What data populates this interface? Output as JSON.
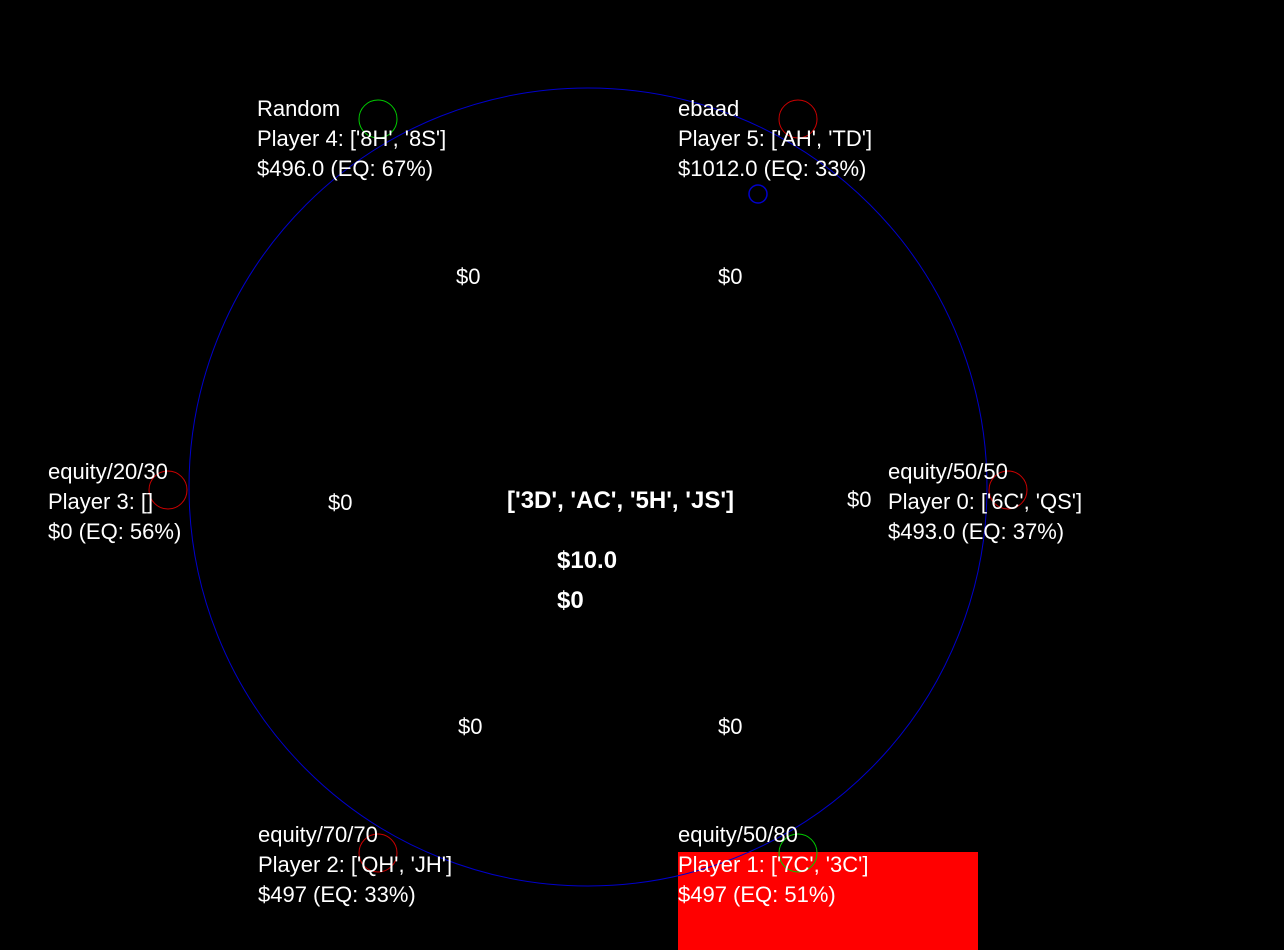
{
  "colors": {
    "background": "#000000",
    "table_outline": "#0000cc",
    "text": "#ffffff",
    "active_highlight": "#ff0000",
    "marker_green": "#00cc00",
    "marker_red": "#cc0000",
    "marker_blue": "#0000cc"
  },
  "board": {
    "cards_text": "['3D', 'AC', '5H', 'JS']"
  },
  "pot": {
    "main": "$10.0",
    "side": "$0"
  },
  "players": [
    {
      "seat": "player-4",
      "strategy": "Random",
      "cards_line": "Player 4: ['8H', '8S']",
      "stack_line": "$496.0 (EQ: 67%)",
      "bet": "$0",
      "marker_icon": "green-circle-icon",
      "active": false
    },
    {
      "seat": "player-5",
      "strategy": "ebaad",
      "cards_line": "Player 5: ['AH', 'TD']",
      "stack_line": "$1012.0 (EQ: 33%)",
      "bet": "$0",
      "marker_icon": "red-circle-icon",
      "active": false
    },
    {
      "seat": "player-3",
      "strategy": "equity/20/30",
      "cards_line": "Player 3: []",
      "stack_line": "$0 (EQ: 56%)",
      "bet": "$0",
      "marker_icon": "red-circle-icon",
      "active": false
    },
    {
      "seat": "player-0",
      "strategy": "equity/50/50",
      "cards_line": "Player 0: ['6C', 'QS']",
      "stack_line": "$493.0 (EQ: 37%)",
      "bet": "$0",
      "marker_icon": "red-circle-icon",
      "active": false
    },
    {
      "seat": "player-2",
      "strategy": "equity/70/70",
      "cards_line": "Player 2: ['QH', 'JH']",
      "stack_line": "$497 (EQ: 33%)",
      "bet": "$0",
      "marker_icon": "red-circle-icon",
      "active": false
    },
    {
      "seat": "player-1",
      "strategy": "equity/50/80",
      "cards_line": "Player 1: ['7C', '3C']",
      "stack_line": "$497 (EQ: 51%)",
      "bet": "$0",
      "marker_icon": "green-circle-icon",
      "active": true
    }
  ],
  "dealer_marker_icon": "blue-circle-icon"
}
